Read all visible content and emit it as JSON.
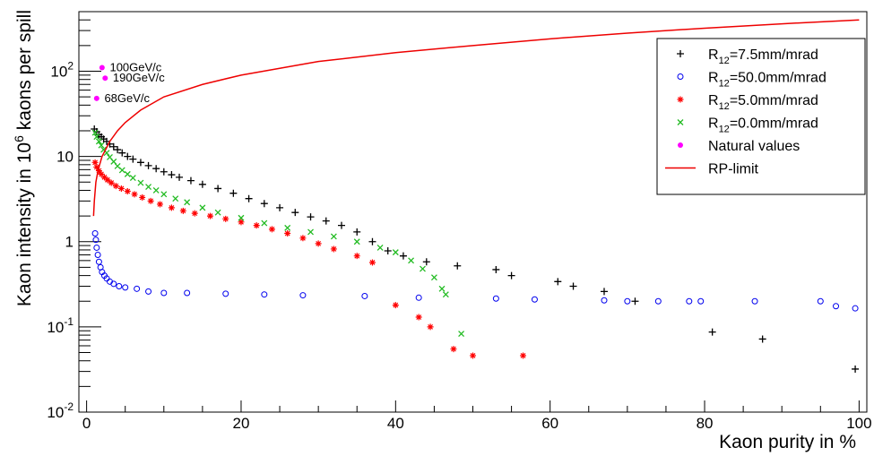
{
  "chart_data": {
    "type": "scatter",
    "xlabel": "Kaon purity in %",
    "ylabel_parts": [
      "Kaon intensity in 10",
      "6",
      " kaons per spill"
    ],
    "xlim": [
      -1,
      101
    ],
    "ylim": [
      0.01,
      500
    ],
    "yscale": "log",
    "grid": false,
    "legend_position": "top-right",
    "x_ticks": [
      0,
      20,
      40,
      60,
      80,
      100
    ],
    "y_ticks": [
      {
        "value": 0.01,
        "base": "10",
        "exp": "-2"
      },
      {
        "value": 0.1,
        "base": "10",
        "exp": "-1"
      },
      {
        "value": 1,
        "base": "1",
        "exp": ""
      },
      {
        "value": 10,
        "base": "10",
        "exp": ""
      },
      {
        "value": 100,
        "base": "10",
        "exp": "2"
      }
    ],
    "series": [
      {
        "name_base": "R",
        "name_sub": "12",
        "name_rest": "=7.5mm/mrad",
        "marker": "plus",
        "color": "#000000",
        "points": [
          [
            1.0,
            21
          ],
          [
            1.3,
            19.5
          ],
          [
            1.6,
            18
          ],
          [
            1.9,
            17
          ],
          [
            2.2,
            16
          ],
          [
            2.6,
            15
          ],
          [
            3.0,
            14
          ],
          [
            3.5,
            13
          ],
          [
            4.0,
            12
          ],
          [
            4.6,
            11
          ],
          [
            5.3,
            10
          ],
          [
            6.0,
            9.3
          ],
          [
            7.0,
            8.5
          ],
          [
            8.0,
            7.8
          ],
          [
            9.0,
            7.2
          ],
          [
            10.0,
            6.6
          ],
          [
            11.0,
            6.1
          ],
          [
            12.0,
            5.7
          ],
          [
            13.5,
            5.2
          ],
          [
            15.0,
            4.7
          ],
          [
            17.0,
            4.2
          ],
          [
            19.0,
            3.7
          ],
          [
            21.0,
            3.2
          ],
          [
            23.0,
            2.8
          ],
          [
            25.0,
            2.5
          ],
          [
            27.0,
            2.2
          ],
          [
            29.0,
            1.95
          ],
          [
            31.0,
            1.75
          ],
          [
            33.0,
            1.55
          ],
          [
            35.0,
            1.3
          ],
          [
            37.0,
            1.0
          ],
          [
            39.0,
            0.78
          ],
          [
            41.0,
            0.68
          ],
          [
            44.0,
            0.58
          ],
          [
            48.0,
            0.52
          ],
          [
            53.0,
            0.47
          ],
          [
            55.0,
            0.4
          ],
          [
            61.0,
            0.34
          ],
          [
            63.0,
            0.3
          ],
          [
            67.0,
            0.26
          ],
          [
            71.0,
            0.2
          ],
          [
            81.0,
            0.087
          ],
          [
            87.5,
            0.072
          ],
          [
            99.5,
            0.032
          ]
        ]
      },
      {
        "name_base": "R",
        "name_sub": "12",
        "name_rest": "=50.0mm/mrad",
        "marker": "circle",
        "color": "#0000ee",
        "points": [
          [
            1.1,
            1.25
          ],
          [
            1.2,
            1.05
          ],
          [
            1.3,
            0.85
          ],
          [
            1.45,
            0.7
          ],
          [
            1.6,
            0.58
          ],
          [
            1.8,
            0.5
          ],
          [
            2.0,
            0.44
          ],
          [
            2.3,
            0.4
          ],
          [
            2.6,
            0.37
          ],
          [
            3.0,
            0.34
          ],
          [
            3.5,
            0.32
          ],
          [
            4.2,
            0.3
          ],
          [
            5.0,
            0.29
          ],
          [
            6.5,
            0.28
          ],
          [
            8.0,
            0.26
          ],
          [
            10.0,
            0.25
          ],
          [
            13.0,
            0.25
          ],
          [
            18.0,
            0.245
          ],
          [
            23.0,
            0.24
          ],
          [
            28.0,
            0.235
          ],
          [
            36.0,
            0.23
          ],
          [
            43.0,
            0.22
          ],
          [
            53.0,
            0.215
          ],
          [
            58.0,
            0.21
          ],
          [
            67.0,
            0.205
          ],
          [
            70.0,
            0.2
          ],
          [
            74.0,
            0.2
          ],
          [
            78.0,
            0.2
          ],
          [
            79.5,
            0.2
          ],
          [
            86.5,
            0.2
          ],
          [
            95.0,
            0.2
          ],
          [
            97.0,
            0.175
          ],
          [
            99.5,
            0.165
          ]
        ]
      },
      {
        "name_base": "R",
        "name_sub": "12",
        "name_rest": "=5.0mm/mrad",
        "marker": "star",
        "color": "#ff0000",
        "points": [
          [
            1.1,
            8.5
          ],
          [
            1.3,
            7.5
          ],
          [
            1.6,
            6.8
          ],
          [
            1.9,
            6.2
          ],
          [
            2.3,
            5.7
          ],
          [
            2.7,
            5.3
          ],
          [
            3.2,
            4.9
          ],
          [
            3.8,
            4.5
          ],
          [
            4.5,
            4.2
          ],
          [
            5.3,
            3.9
          ],
          [
            6.2,
            3.6
          ],
          [
            7.2,
            3.3
          ],
          [
            8.3,
            3.0
          ],
          [
            9.5,
            2.75
          ],
          [
            11.0,
            2.5
          ],
          [
            12.5,
            2.3
          ],
          [
            14.0,
            2.15
          ],
          [
            16.0,
            2.0
          ],
          [
            18.0,
            1.85
          ],
          [
            20.0,
            1.7
          ],
          [
            22.0,
            1.55
          ],
          [
            24.0,
            1.4
          ],
          [
            26.0,
            1.25
          ],
          [
            28.0,
            1.1
          ],
          [
            30.0,
            0.95
          ],
          [
            32.0,
            0.82
          ],
          [
            35.0,
            0.68
          ],
          [
            37.0,
            0.57
          ],
          [
            40.0,
            0.18
          ],
          [
            43.0,
            0.13
          ],
          [
            44.5,
            0.1
          ],
          [
            47.5,
            0.055
          ],
          [
            50.0,
            0.046
          ],
          [
            56.5,
            0.046
          ]
        ]
      },
      {
        "name_base": "R",
        "name_sub": "12",
        "name_rest": "=0.0mm/mrad",
        "marker": "cross",
        "color": "#22bb22",
        "points": [
          [
            1.1,
            19
          ],
          [
            1.3,
            17
          ],
          [
            1.6,
            15
          ],
          [
            1.9,
            13.5
          ],
          [
            2.2,
            12
          ],
          [
            2.6,
            11
          ],
          [
            3.0,
            9.8
          ],
          [
            3.5,
            8.7
          ],
          [
            4.0,
            7.7
          ],
          [
            4.6,
            6.9
          ],
          [
            5.3,
            6.2
          ],
          [
            6.0,
            5.6
          ],
          [
            7.0,
            4.9
          ],
          [
            8.0,
            4.4
          ],
          [
            9.0,
            4.0
          ],
          [
            10.0,
            3.6
          ],
          [
            11.5,
            3.2
          ],
          [
            13.0,
            2.9
          ],
          [
            15.0,
            2.5
          ],
          [
            17.0,
            2.2
          ],
          [
            20.0,
            1.9
          ],
          [
            23.0,
            1.65
          ],
          [
            26.0,
            1.45
          ],
          [
            29.0,
            1.3
          ],
          [
            32.0,
            1.15
          ],
          [
            35.0,
            1.0
          ],
          [
            38.0,
            0.85
          ],
          [
            40.0,
            0.75
          ],
          [
            42.0,
            0.6
          ],
          [
            43.5,
            0.48
          ],
          [
            45.0,
            0.38
          ],
          [
            46.0,
            0.28
          ],
          [
            46.5,
            0.24
          ],
          [
            48.5,
            0.083
          ]
        ]
      },
      {
        "name_base": "Natural values",
        "name_sub": "",
        "name_rest": "",
        "marker": "dot",
        "color": "#ff00ff",
        "points": [
          [
            2.0,
            110
          ],
          [
            2.4,
            83
          ],
          [
            1.3,
            48
          ]
        ]
      },
      {
        "name_base": "RP-limit",
        "name_sub": "",
        "name_rest": "",
        "marker": "line",
        "color": "#ee0000",
        "points": [
          [
            0.9,
            2.0
          ],
          [
            1.0,
            3.0
          ],
          [
            1.2,
            5.0
          ],
          [
            1.5,
            7.0
          ],
          [
            2.0,
            10.0
          ],
          [
            3.0,
            15.0
          ],
          [
            4.0,
            20.0
          ],
          [
            5.0,
            25.0
          ],
          [
            7.0,
            35.0
          ],
          [
            10.0,
            50.0
          ],
          [
            15.0,
            70.0
          ],
          [
            20.0,
            90.0
          ],
          [
            30.0,
            130.0
          ],
          [
            40.0,
            165.0
          ],
          [
            50.0,
            200.0
          ],
          [
            60.0,
            240.0
          ],
          [
            70.0,
            280.0
          ],
          [
            80.0,
            320.0
          ],
          [
            90.0,
            360.0
          ],
          [
            100.0,
            400.0
          ]
        ]
      }
    ],
    "annotations": [
      {
        "text": "100GeV/c",
        "x": 3.0,
        "y": 110
      },
      {
        "text": "190GeV/c",
        "x": 3.4,
        "y": 83
      },
      {
        "text": "68GeV/c",
        "x": 2.3,
        "y": 48
      }
    ]
  }
}
